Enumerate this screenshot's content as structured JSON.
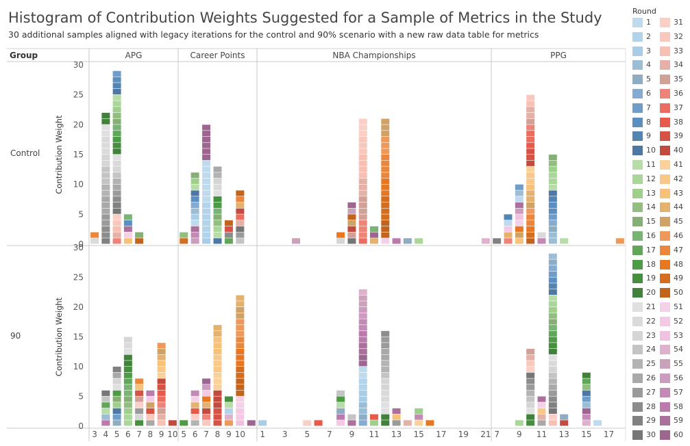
{
  "chart_data": {
    "type": "bar",
    "stacked": true,
    "title": "Histogram of Contribution Weights Suggested for a Sample of Metrics in the Study",
    "subtitle": "30 additional samples aligned with legacy iterations for the control and 90% scenario with a new raw data table for metrics",
    "row_header": "Group",
    "ylabel": "Contribution Weight",
    "ylim": [
      0,
      30
    ],
    "yticks": [
      0,
      5,
      10,
      15,
      20,
      25,
      30
    ],
    "legend_title": "Round",
    "rounds": [
      1,
      2,
      3,
      4,
      5,
      6,
      7,
      8,
      9,
      10,
      11,
      12,
      13,
      14,
      15,
      16,
      17,
      18,
      19,
      20,
      21,
      22,
      23,
      24,
      25,
      26,
      27,
      28,
      29,
      30,
      31,
      32,
      33,
      34,
      35,
      36,
      37,
      38,
      39,
      40,
      41,
      42,
      43,
      44,
      45,
      46,
      47,
      48,
      49,
      50,
      51,
      52,
      53,
      54,
      55,
      56,
      57,
      58,
      59,
      60
    ],
    "legend_columns": [
      [
        1,
        2,
        3,
        4,
        5,
        6,
        7,
        8,
        9,
        10,
        11,
        12,
        13,
        14,
        15,
        16,
        17,
        18,
        19,
        20,
        21,
        22,
        23,
        24,
        25,
        26,
        27,
        28,
        29,
        30
      ],
      [
        31,
        32,
        33,
        34,
        35,
        36,
        37,
        38,
        39,
        40,
        41,
        42,
        43,
        44,
        45,
        46,
        47,
        48,
        49,
        50,
        51,
        52,
        53,
        54,
        55,
        56,
        57,
        58,
        59,
        60
      ]
    ],
    "colors": {
      "light_blue": "#a9cde7",
      "blue": "#5b8fc2",
      "light_green": "#9fd08b",
      "green": "#4c9b45",
      "light_gray": "#d5d5d5",
      "gray": "#8c8c8c",
      "light_salmon": "#f9bfb3",
      "red": "#e8594a",
      "light_orange": "#f8c178",
      "orange": "#e87722",
      "pink": "#f1c2df",
      "mauve": "#bb7aab"
    },
    "groups": [
      "Control",
      "90"
    ],
    "metrics": [
      {
        "name": "APG",
        "ticks": [
          "3",
          "4",
          "5",
          "6",
          "7",
          "8",
          "9",
          "10"
        ]
      },
      {
        "name": "Career Points",
        "ticks": [
          "5",
          "6",
          "7",
          "8",
          "9",
          "10"
        ]
      },
      {
        "name": "NBA Championships",
        "ticks": [
          "1",
          "3",
          "5",
          "7",
          "9",
          "11",
          "13",
          "15",
          "17",
          "19",
          "21"
        ]
      },
      {
        "name": "PPG",
        "ticks": [
          "7",
          "9",
          "11",
          "13",
          "15",
          "17"
        ]
      }
    ],
    "series": [
      {
        "group": "Control",
        "metric": "APG",
        "x": [
          3,
          4,
          5,
          6,
          7
        ],
        "values": [
          2,
          22,
          29,
          5,
          2
        ]
      },
      {
        "group": "Control",
        "metric": "Career Points",
        "x": [
          5,
          6,
          7,
          8,
          9,
          10
        ],
        "values": [
          2,
          12,
          20,
          13,
          4,
          9
        ]
      },
      {
        "group": "Control",
        "metric": "NBA Championships",
        "x": [
          4,
          8,
          9,
          10,
          11,
          12,
          13,
          14,
          15,
          21
        ],
        "values": [
          1,
          2,
          7,
          21,
          3,
          21,
          1,
          1,
          1,
          1
        ]
      },
      {
        "group": "Control",
        "metric": "PPG",
        "x": [
          7,
          8,
          9,
          10,
          11,
          12,
          13,
          18
        ],
        "values": [
          1,
          5,
          10,
          25,
          2,
          15,
          1,
          1
        ]
      },
      {
        "group": "90",
        "metric": "APG",
        "x": [
          4,
          5,
          6,
          7,
          8,
          9,
          10
        ],
        "values": [
          6,
          10,
          15,
          8,
          6,
          14,
          1
        ]
      },
      {
        "group": "90",
        "metric": "Career Points",
        "x": [
          5,
          6,
          7,
          8,
          9,
          10,
          11
        ],
        "values": [
          1,
          6,
          8,
          17,
          5,
          22,
          1
        ]
      },
      {
        "group": "90",
        "metric": "NBA Championships",
        "x": [
          1,
          5,
          6,
          8,
          9,
          10,
          11,
          12,
          13,
          14,
          15,
          16
        ],
        "values": [
          1,
          1,
          1,
          6,
          2,
          23,
          2,
          16,
          3,
          1,
          3,
          1
        ]
      },
      {
        "group": "90",
        "metric": "PPG",
        "x": [
          9,
          10,
          11,
          12,
          13,
          15,
          16
        ],
        "values": [
          1,
          13,
          5,
          29,
          2,
          9,
          1
        ]
      }
    ]
  }
}
